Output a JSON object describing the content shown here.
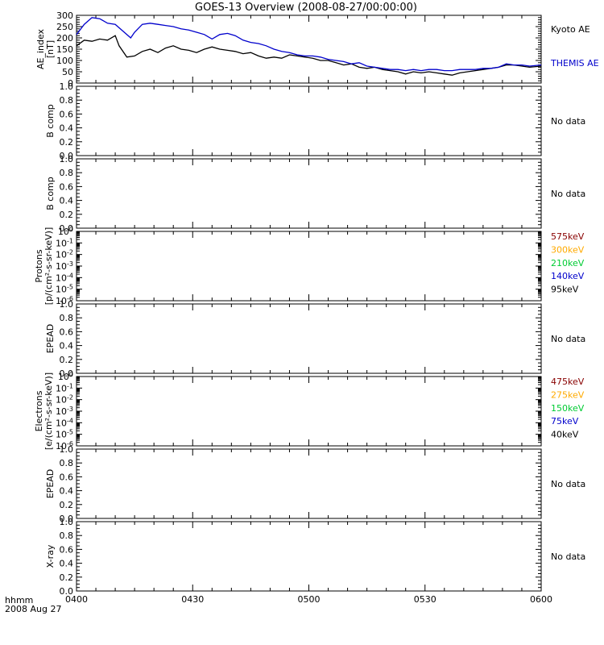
{
  "title": "GOES-13 Overview (2008-08-27/00:00:00)",
  "time_axis": {
    "ticks": [
      "0400",
      "0430",
      "0500",
      "0530",
      "0600"
    ],
    "corner_label_line1": "hhmm",
    "corner_label_line2": "2008 Aug 27"
  },
  "colors": {
    "black": "#000000",
    "blue": "#0000cc",
    "green": "#00cc33",
    "orange": "#ffaa00",
    "darkred": "#880000"
  },
  "chart_data": [
    {
      "type": "line",
      "ylabel": "AE_index",
      "yunit": "[nT]",
      "ylim": [
        0,
        300
      ],
      "yticks": [
        "0",
        "50",
        "100",
        "150",
        "200",
        "250",
        "300"
      ],
      "xlim": [
        0,
        120
      ],
      "x_unit": "minutes after 0400",
      "series": [
        {
          "name": "Kyoto AE",
          "color": "#000000",
          "x": [
            0,
            2,
            4,
            6,
            8,
            10,
            11,
            13,
            15,
            17,
            19,
            21,
            23,
            25,
            27,
            29,
            31,
            33,
            35,
            37,
            39,
            41,
            43,
            45,
            47,
            49,
            51,
            53,
            55,
            57,
            59,
            61,
            63,
            65,
            67,
            69,
            71,
            73,
            75,
            77,
            79,
            81,
            83,
            85,
            87,
            89,
            91,
            93,
            95,
            97,
            99,
            101,
            103,
            105,
            107,
            109,
            111,
            113,
            115,
            117,
            120
          ],
          "values": [
            165,
            190,
            185,
            195,
            190,
            210,
            165,
            115,
            120,
            140,
            150,
            135,
            155,
            165,
            150,
            145,
            135,
            150,
            160,
            150,
            145,
            140,
            130,
            135,
            120,
            110,
            115,
            110,
            125,
            120,
            115,
            110,
            100,
            100,
            90,
            80,
            85,
            70,
            65,
            70,
            60,
            55,
            50,
            40,
            50,
            45,
            50,
            45,
            40,
            35,
            45,
            50,
            55,
            60,
            65,
            70,
            80,
            80,
            75,
            70,
            75
          ]
        },
        {
          "name": "THEMIS AE",
          "color": "#0000cc",
          "x": [
            0,
            2,
            4,
            6,
            8,
            10,
            12,
            14,
            15,
            17,
            19,
            21,
            23,
            25,
            27,
            29,
            31,
            33,
            35,
            37,
            39,
            41,
            43,
            45,
            47,
            49,
            51,
            53,
            55,
            57,
            59,
            61,
            63,
            65,
            67,
            69,
            71,
            73,
            75,
            77,
            79,
            81,
            83,
            85,
            87,
            89,
            91,
            93,
            95,
            97,
            99,
            101,
            103,
            105,
            107,
            109,
            111,
            113,
            115,
            117,
            120
          ],
          "values": [
            215,
            260,
            290,
            285,
            265,
            260,
            230,
            200,
            225,
            260,
            265,
            260,
            255,
            250,
            240,
            235,
            225,
            215,
            195,
            215,
            220,
            210,
            190,
            180,
            175,
            165,
            150,
            140,
            135,
            125,
            120,
            120,
            115,
            105,
            100,
            95,
            85,
            90,
            75,
            70,
            65,
            60,
            60,
            55,
            60,
            55,
            60,
            60,
            55,
            55,
            60,
            60,
            60,
            65,
            65,
            70,
            85,
            80,
            80,
            75,
            80
          ]
        }
      ],
      "legend": [
        "Kyoto AE",
        "THEMIS AE"
      ]
    },
    {
      "type": "line",
      "ylabel": "B comp",
      "ylim": [
        0,
        1
      ],
      "yticks": [
        "0.0",
        "0.2",
        "0.4",
        "0.6",
        "0.8",
        "1.0"
      ],
      "status": "No data",
      "series": []
    },
    {
      "type": "line",
      "ylabel": "B comp",
      "ylim": [
        0,
        1
      ],
      "yticks": [
        "0.0",
        "0.2",
        "0.4",
        "0.6",
        "0.8",
        "1.0"
      ],
      "status": "No data",
      "series": []
    },
    {
      "type": "line",
      "ylabel": "Protons",
      "ylabel2": "[p/(cm²-s-sr-keV)]",
      "yscale": "log",
      "ylim": [
        1e-06,
        1
      ],
      "yticks": [
        "10⁻⁶",
        "10⁻⁵",
        "10⁻⁴",
        "10⁻³",
        "10⁻²",
        "10⁻¹",
        "10⁰"
      ],
      "channels": [
        {
          "label": "575keV",
          "color": "#880000"
        },
        {
          "label": "300keV",
          "color": "#ffaa00"
        },
        {
          "label": "210keV",
          "color": "#00cc33"
        },
        {
          "label": "140keV",
          "color": "#0000cc"
        },
        {
          "label": "95keV",
          "color": "#000000"
        }
      ],
      "series": []
    },
    {
      "type": "line",
      "ylabel": "EPEAD",
      "ylim": [
        0,
        1
      ],
      "yticks": [
        "0.0",
        "0.2",
        "0.4",
        "0.6",
        "0.8",
        "1.0"
      ],
      "status": "No data",
      "series": []
    },
    {
      "type": "line",
      "ylabel": "Electrons",
      "ylabel2": "[e/(cm²-s-sr-keV)]",
      "yscale": "log",
      "ylim": [
        1e-06,
        1
      ],
      "yticks": [
        "10⁻⁶",
        "10⁻⁵",
        "10⁻⁴",
        "10⁻³",
        "10⁻²",
        "10⁻¹",
        "10⁰"
      ],
      "channels": [
        {
          "label": "475keV",
          "color": "#880000"
        },
        {
          "label": "275keV",
          "color": "#ffaa00"
        },
        {
          "label": "150keV",
          "color": "#00cc33"
        },
        {
          "label": "75keV",
          "color": "#0000cc"
        },
        {
          "label": "40keV",
          "color": "#000000"
        }
      ],
      "series": []
    },
    {
      "type": "line",
      "ylabel": "EPEAD",
      "ylim": [
        0,
        1
      ],
      "yticks": [
        "0.0",
        "0.2",
        "0.4",
        "0.6",
        "0.8",
        "1.0"
      ],
      "status": "No data",
      "series": []
    },
    {
      "type": "line",
      "ylabel": "X-ray",
      "ylim": [
        0,
        1
      ],
      "yticks": [
        "0.0",
        "0.2",
        "0.4",
        "0.6",
        "0.8",
        "1.0"
      ],
      "status": "No data",
      "series": []
    }
  ]
}
